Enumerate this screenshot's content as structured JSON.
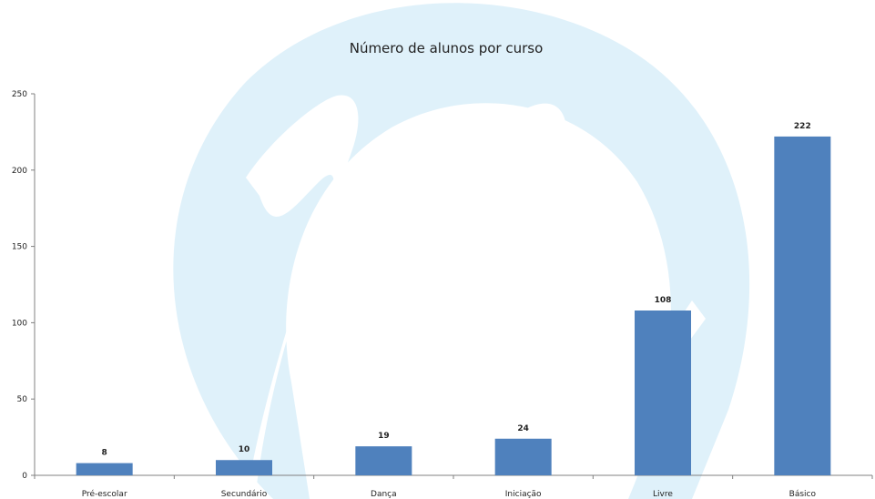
{
  "chart_data": {
    "type": "bar",
    "title": "Número de alunos por curso",
    "xlabel": "",
    "ylabel": "",
    "categories": [
      "Pré-escolar",
      "Secundário",
      "Dança",
      "Iniciação",
      "Livre",
      "Básico"
    ],
    "values": [
      8,
      10,
      19,
      24,
      108,
      222
    ],
    "value_labels": [
      "8",
      "10",
      "19",
      "24",
      "108",
      "222"
    ],
    "ylim": [
      0,
      250
    ],
    "yticks": [
      "0",
      "50",
      "100",
      "150",
      "200",
      "250"
    ],
    "grid": false,
    "legend": "none",
    "bar_color": "#4f81bd",
    "watermark_color": "#d9eef8"
  }
}
